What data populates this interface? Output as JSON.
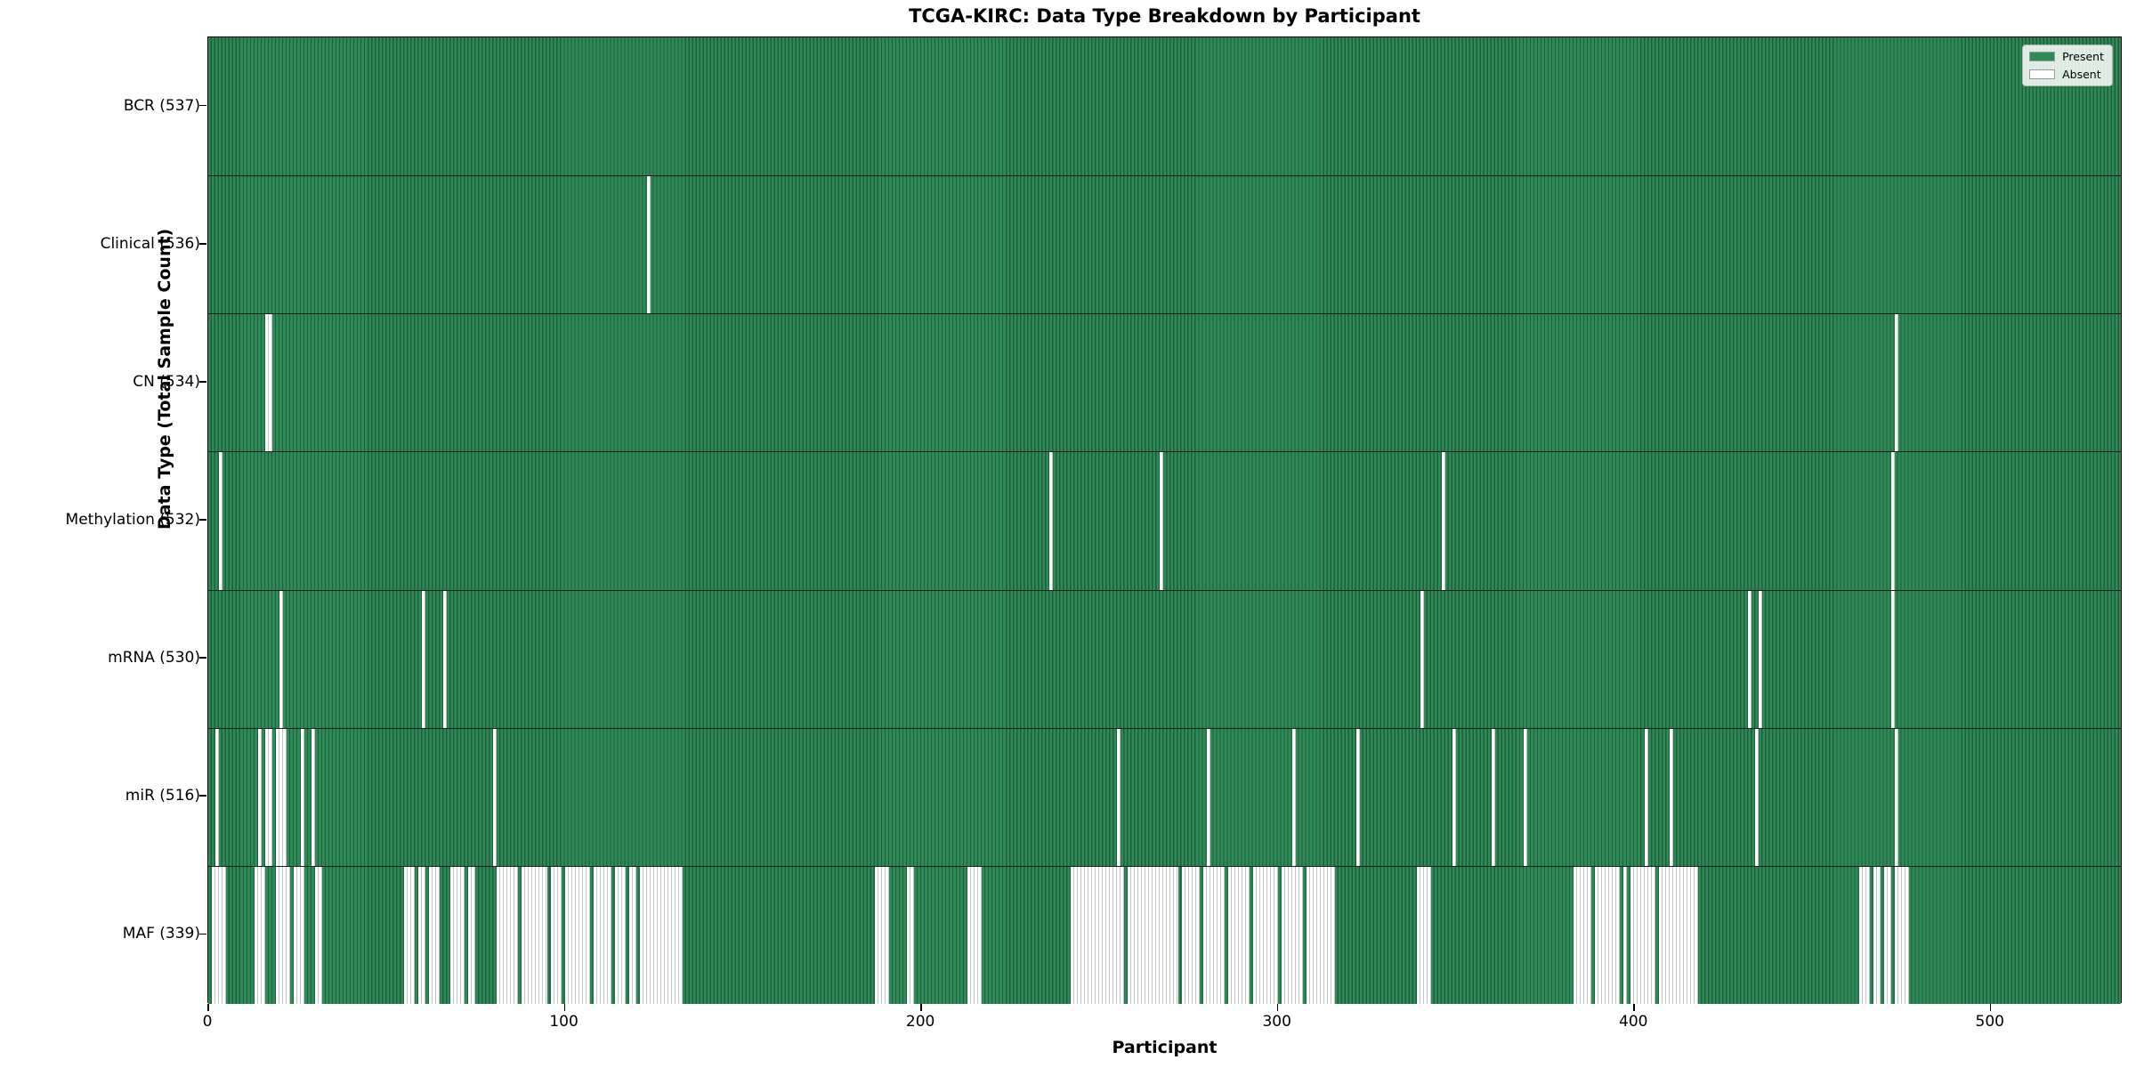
{
  "title": "TCGA-KIRC: Data Type Breakdown by Participant",
  "x_axis": {
    "label": "Participant",
    "ticks": [
      0,
      100,
      200,
      300,
      400,
      500
    ]
  },
  "y_axis": {
    "label": "Data Type (Total Sample Count)"
  },
  "legend": [
    {
      "label": "Present",
      "color": "#2e8b57"
    },
    {
      "label": "Absent",
      "color": "#ffffff"
    }
  ],
  "colors": {
    "present": "#2e8b57",
    "present_edge": "#1f5e3c",
    "absent": "#ffffff",
    "absent_edge": "#c4c4c4",
    "row_divider": "#1a1a1a",
    "plot_border": "#000000"
  },
  "chart_data": {
    "type": "heatmap",
    "title": "TCGA-KIRC: Data Type Breakdown by Participant",
    "xlabel": "Participant",
    "ylabel": "Data Type (Total Sample Count)",
    "x_range": [
      0,
      537
    ],
    "n_participants": 537,
    "legend_position": "upper right",
    "value_encoding": {
      "present": "#2e8b57",
      "absent": "#ffffff"
    },
    "rows": [
      {
        "label": "BCR (537)",
        "data_type": "BCR",
        "present_count": 537,
        "absent_count": 0,
        "absent_ranges": []
      },
      {
        "label": "Clinical (536)",
        "data_type": "Clinical",
        "present_count": 536,
        "absent_count": 1,
        "absent_ranges": [
          [
            123,
            123
          ]
        ]
      },
      {
        "label": "CN (534)",
        "data_type": "CN",
        "present_count": 534,
        "absent_count": 3,
        "absent_ranges": [
          [
            16,
            17
          ],
          [
            473,
            473
          ]
        ]
      },
      {
        "label": "Methylation (532)",
        "data_type": "Methylation",
        "present_count": 532,
        "absent_count": 5,
        "absent_ranges": [
          [
            3,
            3
          ],
          [
            236,
            236
          ],
          [
            267,
            267
          ],
          [
            346,
            346
          ],
          [
            472,
            472
          ]
        ]
      },
      {
        "label": "mRNA (530)",
        "data_type": "mRNA",
        "present_count": 530,
        "absent_count": 7,
        "absent_ranges": [
          [
            20,
            20
          ],
          [
            60,
            60
          ],
          [
            66,
            66
          ],
          [
            340,
            340
          ],
          [
            432,
            432
          ],
          [
            435,
            435
          ],
          [
            472,
            472
          ]
        ]
      },
      {
        "label": "miR (516)",
        "data_type": "miR",
        "present_count": 516,
        "absent_count": 21,
        "absent_ranges": [
          [
            2,
            2
          ],
          [
            14,
            14
          ],
          [
            16,
            17
          ],
          [
            19,
            21
          ],
          [
            26,
            26
          ],
          [
            29,
            29
          ],
          [
            80,
            80
          ],
          [
            255,
            255
          ],
          [
            280,
            280
          ],
          [
            304,
            304
          ],
          [
            322,
            322
          ],
          [
            349,
            349
          ],
          [
            360,
            360
          ],
          [
            369,
            369
          ],
          [
            403,
            403
          ],
          [
            410,
            410
          ],
          [
            434,
            434
          ],
          [
            473,
            473
          ]
        ]
      },
      {
        "label": "MAF (339)",
        "data_type": "MAF",
        "present_count": 339,
        "absent_count": 198,
        "absent_ranges": [
          [
            1,
            4
          ],
          [
            13,
            15
          ],
          [
            19,
            22
          ],
          [
            24,
            26
          ],
          [
            30,
            31
          ],
          [
            55,
            57
          ],
          [
            59,
            60
          ],
          [
            62,
            64
          ],
          [
            68,
            71
          ],
          [
            73,
            74
          ],
          [
            81,
            86
          ],
          [
            88,
            94
          ],
          [
            96,
            98
          ],
          [
            100,
            106
          ],
          [
            108,
            112
          ],
          [
            114,
            116
          ],
          [
            118,
            119
          ],
          [
            121,
            127
          ],
          [
            128,
            132
          ],
          [
            187,
            190
          ],
          [
            196,
            197
          ],
          [
            213,
            216
          ],
          [
            242,
            256
          ],
          [
            258,
            271
          ],
          [
            273,
            277
          ],
          [
            279,
            284
          ],
          [
            286,
            291
          ],
          [
            293,
            299
          ],
          [
            301,
            306
          ],
          [
            308,
            315
          ],
          [
            339,
            342
          ],
          [
            383,
            387
          ],
          [
            389,
            395
          ],
          [
            397,
            397
          ],
          [
            399,
            405
          ],
          [
            407,
            417
          ],
          [
            463,
            465
          ],
          [
            467,
            468
          ],
          [
            470,
            471
          ],
          [
            473,
            476
          ]
        ]
      }
    ]
  }
}
